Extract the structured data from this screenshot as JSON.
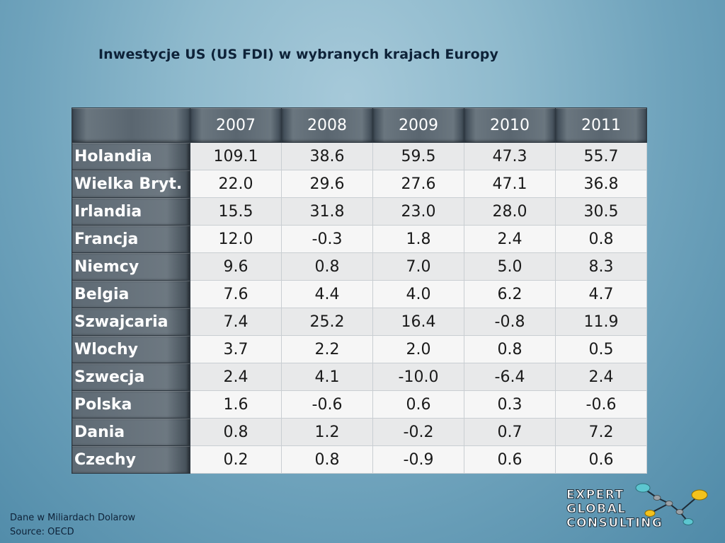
{
  "title": "Inwestycje US (US FDI)  w wybranych krajach Europy",
  "table": {
    "corner": "",
    "years": [
      "2007",
      "2008",
      "2009",
      "2010",
      "2011"
    ],
    "rows": [
      {
        "country": "Holandia",
        "values": [
          "109.1",
          "38.6",
          "59.5",
          "47.3",
          "55.7"
        ]
      },
      {
        "country": "Wielka Bryt.",
        "values": [
          "22.0",
          "29.6",
          "27.6",
          "47.1",
          "36.8"
        ]
      },
      {
        "country": "Irlandia",
        "values": [
          "15.5",
          "31.8",
          "23.0",
          "28.0",
          "30.5"
        ]
      },
      {
        "country": "Francja",
        "values": [
          "12.0",
          "-0.3",
          "1.8",
          "2.4",
          "0.8"
        ]
      },
      {
        "country": "Niemcy",
        "values": [
          "9.6",
          "0.8",
          "7.0",
          "5.0",
          "8.3"
        ]
      },
      {
        "country": "Belgia",
        "values": [
          "7.6",
          "4.4",
          "4.0",
          "6.2",
          "4.7"
        ]
      },
      {
        "country": "Szwajcaria",
        "values": [
          "7.4",
          "25.2",
          "16.4",
          "-0.8",
          "11.9"
        ]
      },
      {
        "country": "Wlochy",
        "values": [
          "3.7",
          "2.2",
          "2.0",
          "0.8",
          "0.5"
        ]
      },
      {
        "country": "Szwecja",
        "values": [
          "2.4",
          "4.1",
          "-10.0",
          "-6.4",
          "2.4"
        ]
      },
      {
        "country": "Polska",
        "values": [
          "1.6",
          "-0.6",
          "0.6",
          "0.3",
          "-0.6"
        ]
      },
      {
        "country": "Dania",
        "values": [
          "0.8",
          "1.2",
          "-0.2",
          "0.7",
          "7.2"
        ]
      },
      {
        "country": "Czechy",
        "values": [
          "0.2",
          "0.8",
          "-0.9",
          "0.6",
          "0.6"
        ]
      }
    ]
  },
  "notes": {
    "units": "Dane w Miliardach Dolarow",
    "source": "Source:  OECD"
  },
  "logo": {
    "lines": [
      "EXPERT",
      "GLOBAL",
      "CONSULTING"
    ],
    "colors": {
      "teal": "#5cc6d0",
      "yellow": "#f4c21c",
      "gray": "#9aa1a7"
    }
  }
}
